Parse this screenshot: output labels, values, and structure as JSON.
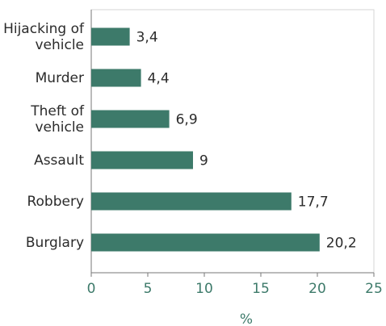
{
  "chart_data": {
    "type": "bar",
    "orientation": "horizontal",
    "categories": [
      "Hijacking of vehicle",
      "Murder",
      "Theft of vehicle",
      "Assault",
      "Robbery",
      "Burglary"
    ],
    "values": [
      3.4,
      4.4,
      6.9,
      9,
      17.7,
      20.2
    ],
    "value_labels": [
      "3,4",
      "4,4",
      "6,9",
      "9",
      "17,7",
      "20,2"
    ],
    "color": "#3d7a6a",
    "xlabel": "%",
    "xlim": [
      0,
      25
    ],
    "xticks": [
      0,
      5,
      10,
      15,
      20,
      25
    ]
  }
}
